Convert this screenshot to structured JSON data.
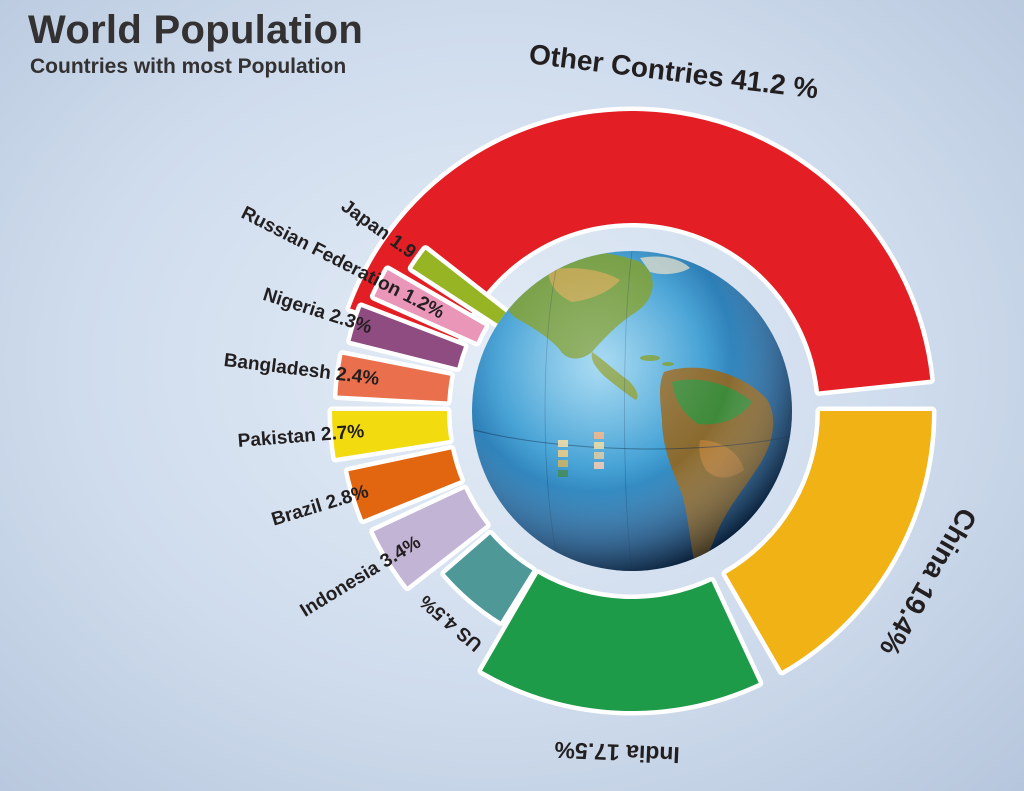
{
  "title": "World Population",
  "subtitle": "Countries with most Population",
  "chart_data": {
    "type": "pie",
    "title": "World Population",
    "subtitle": "Countries with most Population",
    "segments": [
      {
        "label": "Other Contries 41.2 %",
        "name": "Other Contries",
        "value": 41.2,
        "color": "#e31e24"
      },
      {
        "label": "China 19.4%",
        "name": "China",
        "value": 19.4,
        "color": "#f0b214"
      },
      {
        "label": "India 17.5%",
        "name": "India",
        "value": 17.5,
        "color": "#1e9b48"
      },
      {
        "label": "US 4.5%",
        "name": "US",
        "value": 4.5,
        "color": "#4f9898"
      },
      {
        "label": "Indonesia 3.4%",
        "name": "Indonesia",
        "value": 3.4,
        "color": "#c2b4d4"
      },
      {
        "label": "Brazil 2.8%",
        "name": "Brazil",
        "value": 2.8,
        "color": "#e2650f"
      },
      {
        "label": "Pakistan 2.7%",
        "name": "Pakistan",
        "value": 2.7,
        "color": "#f2dc0f"
      },
      {
        "label": "Bangladesh 2.4%",
        "name": "Bangladesh",
        "value": 2.4,
        "color": "#ea6f4d"
      },
      {
        "label": "Nigeria 2.3%",
        "name": "Nigeria",
        "value": 2.3,
        "color": "#8e4c80"
      },
      {
        "label": "Russian Federation 1.2%",
        "name": "Russian Federation",
        "value": 1.2,
        "color": "#e996b9"
      },
      {
        "label": "Japan 1.9",
        "name": "Japan",
        "value": 1.9,
        "color": "#96b423"
      }
    ]
  }
}
